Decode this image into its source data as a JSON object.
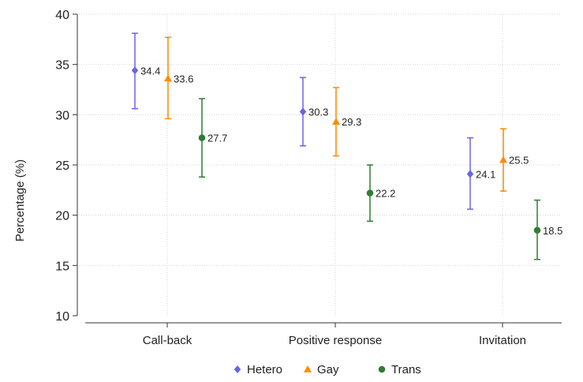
{
  "chart_data": {
    "type": "scatter",
    "ylabel": "Percentage (%)",
    "xlabel": "",
    "ylim": [
      10,
      40
    ],
    "yticks": [
      10,
      15,
      20,
      25,
      30,
      35,
      40
    ],
    "grid": true,
    "legend_position": "bottom",
    "categories": [
      "Call-back",
      "Positive response",
      "Invitation"
    ],
    "series": [
      {
        "name": "Hetero",
        "marker": "diamond",
        "color": "#6a63e8",
        "values": [
          34.4,
          30.3,
          24.1
        ],
        "labels": [
          "34.4",
          "30.3",
          "24.1"
        ],
        "ci_low": [
          30.6,
          26.9,
          20.6
        ],
        "ci_high": [
          38.1,
          33.7,
          27.7
        ]
      },
      {
        "name": "Gay",
        "marker": "triangle",
        "color": "#ff8c00",
        "values": [
          33.6,
          29.3,
          25.5
        ],
        "labels": [
          "33.6",
          "29.3",
          "25.5"
        ],
        "ci_low": [
          29.6,
          25.9,
          22.4
        ],
        "ci_high": [
          37.7,
          32.7,
          28.6
        ]
      },
      {
        "name": "Trans",
        "marker": "circle",
        "color": "#2e7d32",
        "values": [
          27.7,
          22.2,
          18.5
        ],
        "labels": [
          "27.7",
          "22.2",
          "18.5"
        ],
        "ci_low": [
          23.8,
          19.4,
          15.6
        ],
        "ci_high": [
          31.6,
          25.0,
          21.5
        ]
      }
    ]
  }
}
